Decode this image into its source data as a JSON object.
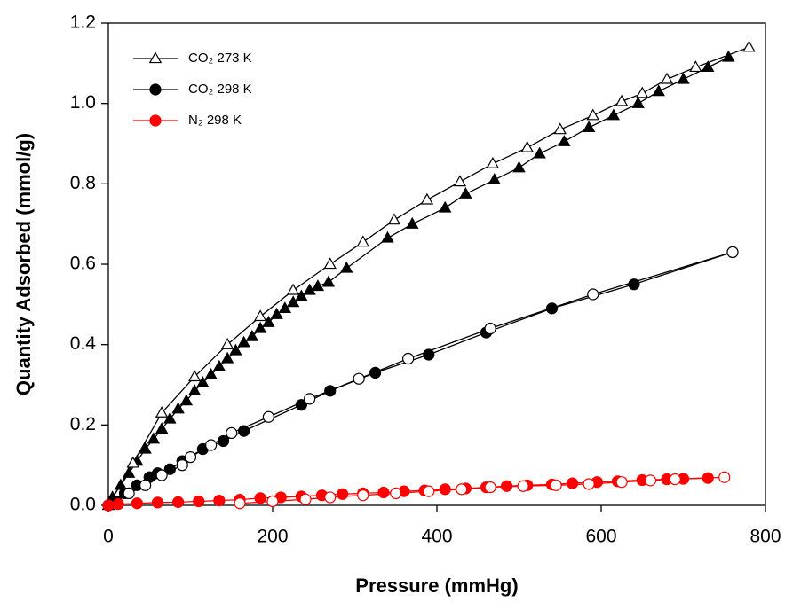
{
  "chart_data": {
    "type": "line",
    "xlabel": "Pressure (mmHg)",
    "ylabel": "Quantity Adsorbed (mmol/g)",
    "xlim": [
      0,
      800
    ],
    "xticks": [
      0,
      200,
      400,
      600,
      800
    ],
    "ylim": [
      0,
      1.2
    ],
    "yticks": [
      {
        "value": 0,
        "label": "0.0"
      },
      0.2,
      0.4,
      0.6,
      0.8,
      {
        "value": 1,
        "label": "1.0"
      },
      1.2
    ],
    "legend": "upper left",
    "series": [
      {
        "name": "CO₂ 273 K",
        "color": "#000000",
        "marker": "triangle",
        "legend_filled": false,
        "branches": [
          {
            "filled": true,
            "x": [
              0,
              5,
              15,
              25,
              35,
              45,
              55,
              65,
              75,
              85,
              95,
              105,
              115,
              125,
              135,
              145,
              155,
              165,
              175,
              185,
              195,
              205,
              215,
              225,
              235,
              245,
              255,
              268,
              290,
              340,
              370,
              410,
              435,
              470,
              500,
              525,
              555,
              585,
              615,
              645,
              670,
              700,
              730,
              755
            ],
            "values": [
              0,
              0.02,
              0.05,
              0.08,
              0.11,
              0.14,
              0.165,
              0.19,
              0.215,
              0.24,
              0.26,
              0.285,
              0.305,
              0.325,
              0.345,
              0.365,
              0.385,
              0.405,
              0.42,
              0.44,
              0.455,
              0.475,
              0.49,
              0.505,
              0.52,
              0.535,
              0.545,
              0.555,
              0.59,
              0.665,
              0.7,
              0.74,
              0.775,
              0.81,
              0.84,
              0.875,
              0.905,
              0.94,
              0.97,
              1.0,
              1.03,
              1.06,
              1.09,
              1.115
            ]
          },
          {
            "filled": false,
            "x": [
              0,
              30,
              65,
              105,
              145,
              185,
              225,
              270,
              310,
              348,
              388,
              428,
              468,
              510,
              550,
              590,
              625,
              650,
              680,
              715,
              780
            ],
            "values": [
              0,
              0.105,
              0.23,
              0.32,
              0.4,
              0.47,
              0.535,
              0.6,
              0.655,
              0.71,
              0.76,
              0.805,
              0.85,
              0.89,
              0.935,
              0.97,
              1.005,
              1.025,
              1.06,
              1.09,
              1.14
            ]
          }
        ]
      },
      {
        "name": "CO₂ 298 K",
        "color": "#000000",
        "marker": "circle",
        "legend_filled": true,
        "branches": [
          {
            "filled": true,
            "x": [
              0,
              10,
              20,
              35,
              50,
              60,
              75,
              90,
              115,
              140,
              165,
              235,
              270,
              325,
              390,
              460,
              540,
              640,
              760
            ],
            "values": [
              0,
              0.01,
              0.03,
              0.05,
              0.07,
              0.08,
              0.09,
              0.11,
              0.14,
              0.16,
              0.185,
              0.25,
              0.285,
              0.33,
              0.375,
              0.43,
              0.49,
              0.55,
              0.63
            ]
          },
          {
            "filled": false,
            "x": [
              0,
              25,
              45,
              65,
              90,
              100,
              125,
              150,
              195,
              245,
              305,
              365,
              465,
              590,
              760
            ],
            "values": [
              0,
              0.03,
              0.05,
              0.075,
              0.1,
              0.12,
              0.15,
              0.18,
              0.22,
              0.265,
              0.315,
              0.365,
              0.44,
              0.525,
              0.63
            ]
          }
        ]
      },
      {
        "name": "N₂ 298 K",
        "color": "#ff0000",
        "marker": "circle",
        "legend_filled": true,
        "branches": [
          {
            "filled": true,
            "x": [
              0,
              12,
              35,
              60,
              85,
              110,
              135,
              160,
              185,
              210,
              235,
              260,
              285,
              310,
              335,
              360,
              385,
              410,
              435,
              460,
              485,
              510,
              540,
              565,
              595,
              620,
              650,
              680,
              700,
              730
            ],
            "values": [
              0,
              0.003,
              0.005,
              0.007,
              0.008,
              0.01,
              0.012,
              0.014,
              0.018,
              0.02,
              0.022,
              0.025,
              0.028,
              0.03,
              0.032,
              0.035,
              0.037,
              0.04,
              0.042,
              0.045,
              0.048,
              0.05,
              0.052,
              0.055,
              0.058,
              0.06,
              0.063,
              0.065,
              0.066,
              0.068
            ]
          },
          {
            "filled": false,
            "x": [
              160,
              200,
              240,
              270,
              310,
              350,
              390,
              430,
              465,
              505,
              545,
              585,
              625,
              660,
              690,
              750
            ],
            "values": [
              0.005,
              0.01,
              0.015,
              0.02,
              0.025,
              0.03,
              0.035,
              0.04,
              0.045,
              0.048,
              0.05,
              0.053,
              0.058,
              0.062,
              0.065,
              0.07
            ]
          }
        ]
      }
    ]
  }
}
